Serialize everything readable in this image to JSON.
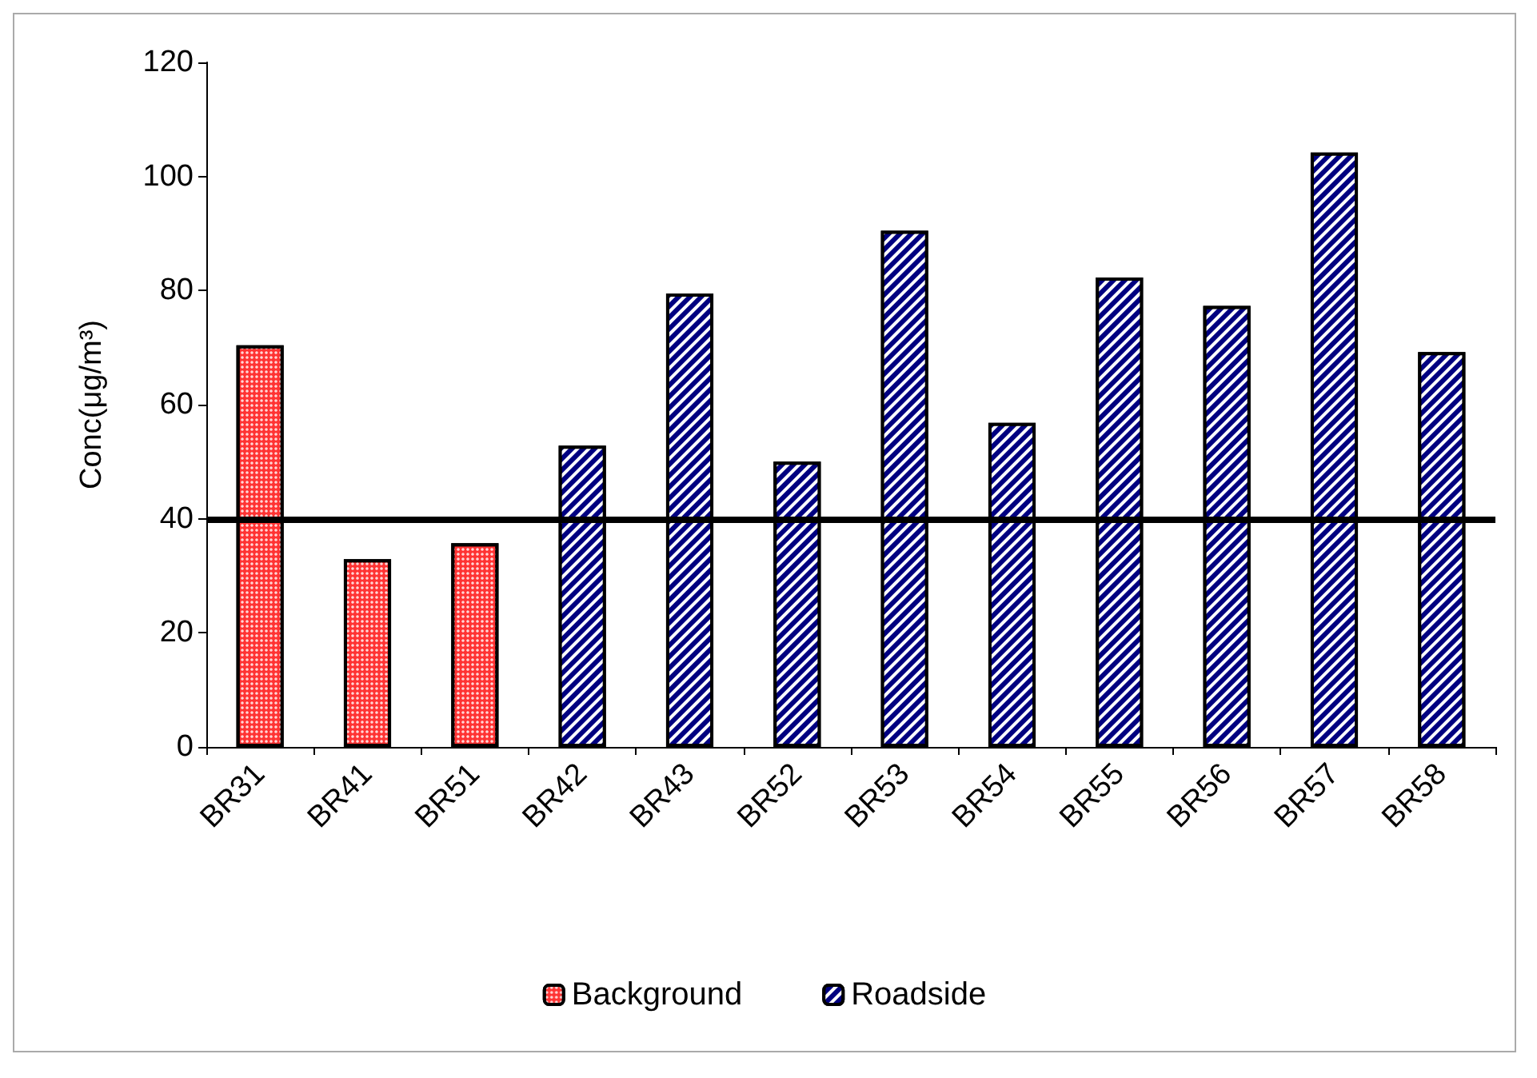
{
  "chart_data": {
    "type": "bar",
    "ylabel": "Conc(μg/m³)",
    "categories": [
      "BR31",
      "BR41",
      "BR51",
      "BR42",
      "BR43",
      "BR52",
      "BR53",
      "BR54",
      "BR55",
      "BR56",
      "BR57",
      "BR58"
    ],
    "series": [
      {
        "name": "Background",
        "color": "#ff3333",
        "values": [
          70.4,
          32.9,
          35.7,
          null,
          null,
          null,
          null,
          null,
          null,
          null,
          null,
          null
        ]
      },
      {
        "name": "Roadside",
        "color": "#000080",
        "values": [
          null,
          null,
          null,
          52.8,
          79.5,
          50.0,
          90.5,
          56.8,
          82.3,
          77.3,
          104.2,
          69.2
        ]
      }
    ],
    "ylim": [
      0,
      120
    ],
    "yticks": [
      0,
      20,
      40,
      60,
      80,
      100,
      120
    ],
    "grid": false,
    "legend": "bottom",
    "ref_lines": [
      {
        "axis": "y",
        "value": 40,
        "color": "#000000",
        "line_style": "solid"
      }
    ]
  }
}
